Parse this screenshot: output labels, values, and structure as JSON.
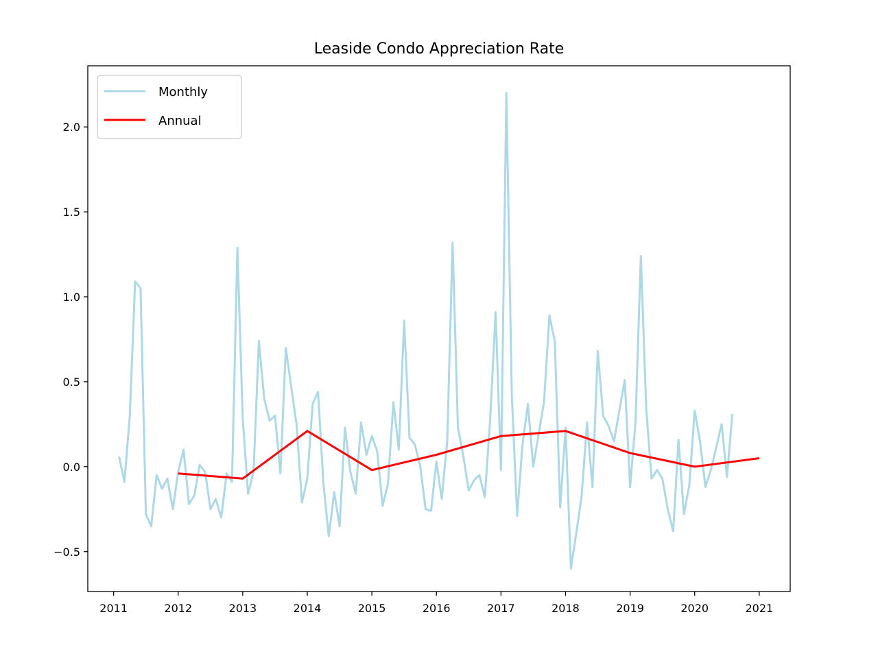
{
  "chart_data": {
    "type": "line",
    "title": "Leaside Condo Appreciation Rate",
    "xlabel": "",
    "ylabel": "",
    "xlim": [
      2010.6,
      2021.48
    ],
    "ylim": [
      -0.735,
      2.36
    ],
    "x_ticks": [
      "2011",
      "2012",
      "2013",
      "2014",
      "2015",
      "2016",
      "2017",
      "2018",
      "2019",
      "2020",
      "2021"
    ],
    "y_ticks": [
      -0.5,
      0.0,
      0.5,
      1.0,
      1.5,
      2.0
    ],
    "y_tick_labels": [
      "−0.5",
      "0.0",
      "0.5",
      "1.0",
      "1.5",
      "2.0"
    ],
    "grid": false,
    "legend_position": "top-left",
    "series": [
      {
        "name": "Monthly",
        "color": "#add8e6",
        "x": [
          2011.083,
          2011.167,
          2011.25,
          2011.333,
          2011.417,
          2011.5,
          2011.583,
          2011.667,
          2011.75,
          2011.833,
          2011.917,
          2012.0,
          2012.083,
          2012.167,
          2012.25,
          2012.333,
          2012.417,
          2012.5,
          2012.583,
          2012.667,
          2012.75,
          2012.833,
          2012.917,
          2013.0,
          2013.083,
          2013.167,
          2013.25,
          2013.333,
          2013.417,
          2013.5,
          2013.583,
          2013.667,
          2013.75,
          2013.833,
          2013.917,
          2014.0,
          2014.083,
          2014.167,
          2014.25,
          2014.333,
          2014.417,
          2014.5,
          2014.583,
          2014.667,
          2014.75,
          2014.833,
          2014.917,
          2015.0,
          2015.083,
          2015.167,
          2015.25,
          2015.333,
          2015.417,
          2015.5,
          2015.583,
          2015.667,
          2015.75,
          2015.833,
          2015.917,
          2016.0,
          2016.083,
          2016.167,
          2016.25,
          2016.333,
          2016.417,
          2016.5,
          2016.583,
          2016.667,
          2016.75,
          2016.833,
          2016.917,
          2017.0,
          2017.083,
          2017.167,
          2017.25,
          2017.333,
          2017.417,
          2017.5,
          2017.583,
          2017.667,
          2017.75,
          2017.833,
          2017.917,
          2018.0,
          2018.083,
          2018.167,
          2018.25,
          2018.333,
          2018.417,
          2018.5,
          2018.583,
          2018.667,
          2018.75,
          2018.833,
          2018.917,
          2019.0,
          2019.083,
          2019.167,
          2019.25,
          2019.333,
          2019.417,
          2019.5,
          2019.583,
          2019.667,
          2019.75,
          2019.833,
          2019.917,
          2020.0,
          2020.083,
          2020.167,
          2020.25,
          2020.333,
          2020.417,
          2020.5,
          2020.583
        ],
        "values": [
          0.06,
          -0.09,
          0.3,
          1.09,
          1.05,
          -0.28,
          -0.35,
          -0.05,
          -0.13,
          -0.07,
          -0.25,
          -0.03,
          0.1,
          -0.22,
          -0.17,
          0.01,
          -0.03,
          -0.25,
          -0.19,
          -0.3,
          -0.04,
          -0.09,
          1.29,
          0.28,
          -0.16,
          -0.03,
          0.74,
          0.4,
          0.27,
          0.3,
          -0.04,
          0.7,
          0.47,
          0.25,
          -0.21,
          -0.07,
          0.37,
          0.44,
          -0.1,
          -0.41,
          -0.15,
          -0.35,
          0.23,
          -0.03,
          -0.16,
          0.26,
          0.07,
          0.18,
          0.09,
          -0.23,
          -0.1,
          0.38,
          0.1,
          0.86,
          0.17,
          0.13,
          0.0,
          -0.25,
          -0.26,
          0.03,
          -0.19,
          0.15,
          1.32,
          0.23,
          0.06,
          -0.14,
          -0.08,
          -0.05,
          -0.18,
          0.28,
          0.91,
          -0.02,
          2.2,
          0.43,
          -0.29,
          0.13,
          0.37,
          0.0,
          0.19,
          0.38,
          0.89,
          0.74,
          -0.24,
          0.23,
          -0.6,
          -0.39,
          -0.17,
          0.26,
          -0.12,
          0.68,
          0.3,
          0.24,
          0.15,
          0.33,
          0.51,
          -0.12,
          0.26,
          1.24,
          0.34,
          -0.07,
          -0.02,
          -0.07,
          -0.25,
          -0.38,
          0.16,
          -0.28,
          -0.11,
          0.33,
          0.15,
          -0.12,
          -0.02,
          0.11,
          0.25,
          -0.06,
          0.31
        ]
      },
      {
        "name": "Annual",
        "color": "#ff0000",
        "x": [
          2012,
          2013,
          2014,
          2015,
          2016,
          2017,
          2018,
          2019,
          2020,
          2021
        ],
        "values": [
          -0.04,
          -0.07,
          0.21,
          -0.02,
          0.07,
          0.18,
          0.21,
          0.08,
          0.0,
          0.05
        ]
      }
    ]
  }
}
